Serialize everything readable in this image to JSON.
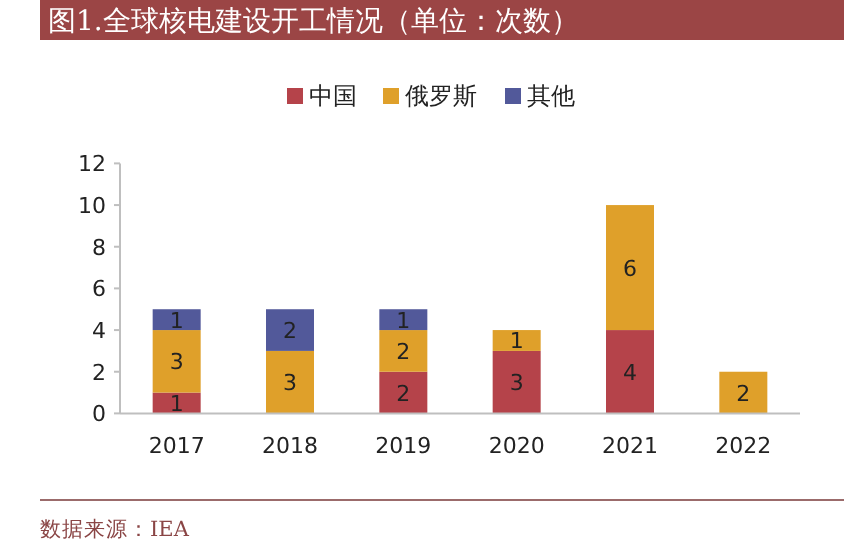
{
  "chart_data": {
    "type": "bar",
    "title": "图1.全球核电建设开工情况（单位：次数）",
    "categories": [
      "2017",
      "2018",
      "2019",
      "2020",
      "2021",
      "2022"
    ],
    "series": [
      {
        "name": "中国",
        "color": "#b5434a",
        "values": [
          1,
          null,
          2,
          3,
          4,
          null
        ]
      },
      {
        "name": "俄罗斯",
        "color": "#dfa02a",
        "values": [
          3,
          3,
          2,
          1,
          6,
          2
        ]
      },
      {
        "name": "其他",
        "color": "#52599a",
        "values": [
          1,
          2,
          1,
          null,
          null,
          null
        ]
      }
    ],
    "stacked": true,
    "data_labels": true,
    "ylim": [
      0,
      12
    ],
    "yticks": [
      0,
      2,
      4,
      6,
      8,
      10,
      12
    ],
    "legend": "top",
    "grid": false,
    "annotations": [
      "数据来源：IEA"
    ]
  }
}
